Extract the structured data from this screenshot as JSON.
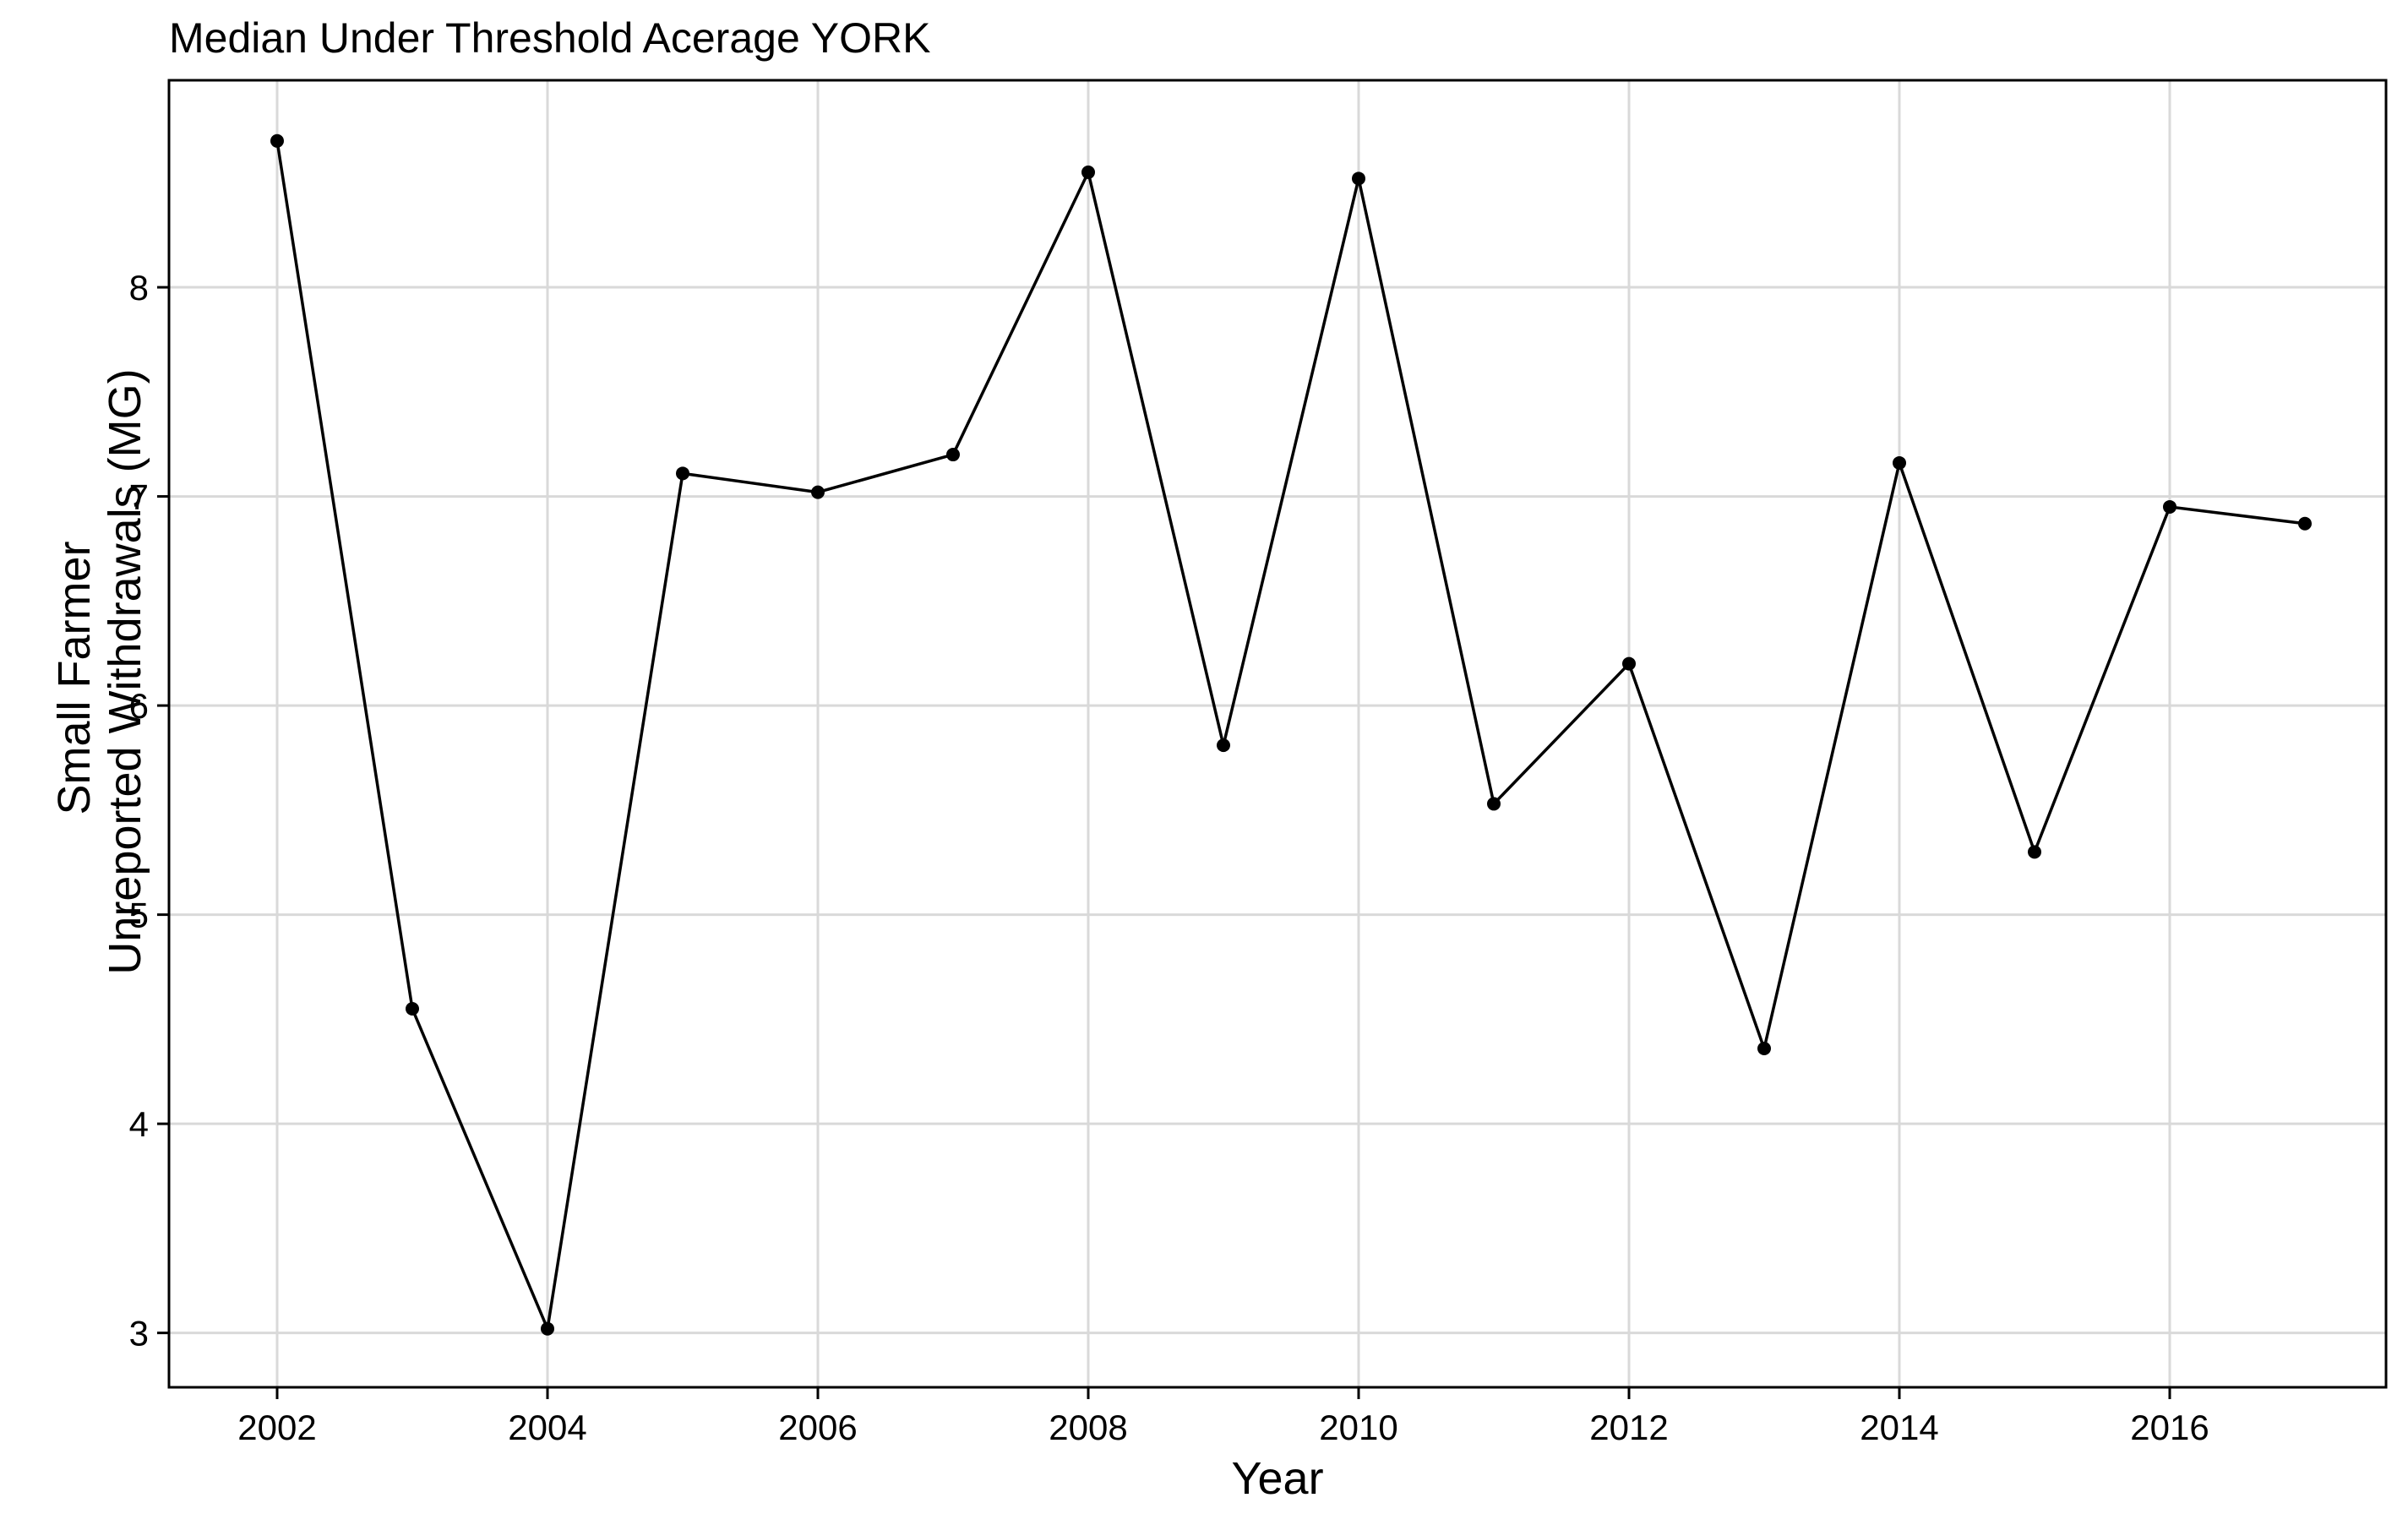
{
  "chart_data": {
    "type": "line",
    "title": "Median Under Threshold Acerage YORK",
    "xlabel": "Year",
    "ylabel_lines": [
      "Small Farmer",
      "Unreported Withdrawals (MG)"
    ],
    "x_ticks": [
      "2002",
      "2004",
      "2006",
      "2008",
      "2010",
      "2012",
      "2014",
      "2016"
    ],
    "y_ticks": [
      "3",
      "4",
      "5",
      "6",
      "7",
      "8"
    ],
    "xlim": [
      2001.2,
      2017.6
    ],
    "ylim": [
      2.74,
      8.99
    ],
    "grid": true,
    "series": [
      {
        "x": [
          2002,
          2003,
          2004,
          2005,
          2006,
          2007,
          2008,
          2009,
          2010,
          2011,
          2012,
          2013,
          2014,
          2015,
          2016,
          2017
        ],
        "values": [
          8.7,
          4.55,
          3.02,
          7.11,
          7.02,
          7.2,
          8.55,
          5.81,
          8.52,
          5.53,
          6.2,
          4.36,
          7.16,
          5.3,
          6.95,
          6.87
        ]
      }
    ],
    "colors": {
      "line": "#000000",
      "grid": "#d9d9d9",
      "background": "#ffffff",
      "frame": "#000000"
    }
  }
}
